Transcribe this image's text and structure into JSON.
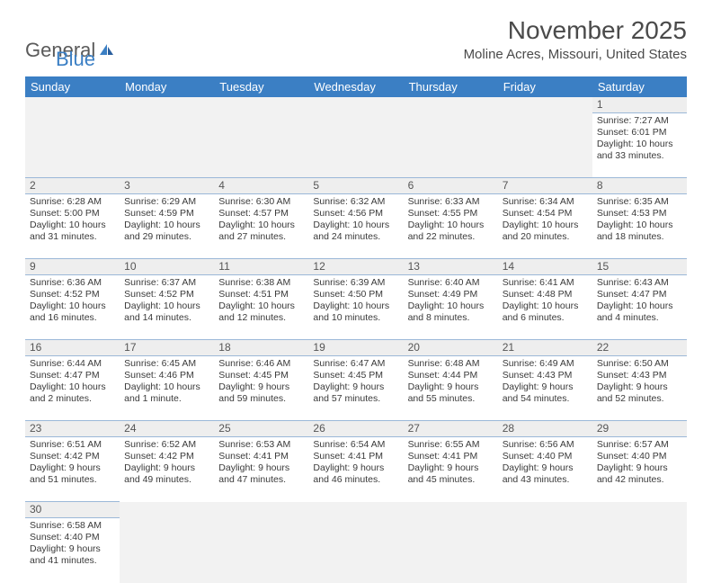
{
  "logo": {
    "text1": "General",
    "text2": "Blue"
  },
  "title": "November 2025",
  "location": "Moline Acres, Missouri, United States",
  "colors": {
    "header_bg": "#3b7fc4",
    "header_text": "#ffffff",
    "daynum_bg": "#eeeeee",
    "cell_border": "#9bb8d8",
    "blank_bg": "#f2f2f2",
    "body_text": "#3a3a3a"
  },
  "day_headers": [
    "Sunday",
    "Monday",
    "Tuesday",
    "Wednesday",
    "Thursday",
    "Friday",
    "Saturday"
  ],
  "weeks": [
    [
      null,
      null,
      null,
      null,
      null,
      null,
      {
        "n": "1",
        "sr": "7:27 AM",
        "ss": "6:01 PM",
        "dl": "10 hours and 33 minutes."
      }
    ],
    [
      {
        "n": "2",
        "sr": "6:28 AM",
        "ss": "5:00 PM",
        "dl": "10 hours and 31 minutes."
      },
      {
        "n": "3",
        "sr": "6:29 AM",
        "ss": "4:59 PM",
        "dl": "10 hours and 29 minutes."
      },
      {
        "n": "4",
        "sr": "6:30 AM",
        "ss": "4:57 PM",
        "dl": "10 hours and 27 minutes."
      },
      {
        "n": "5",
        "sr": "6:32 AM",
        "ss": "4:56 PM",
        "dl": "10 hours and 24 minutes."
      },
      {
        "n": "6",
        "sr": "6:33 AM",
        "ss": "4:55 PM",
        "dl": "10 hours and 22 minutes."
      },
      {
        "n": "7",
        "sr": "6:34 AM",
        "ss": "4:54 PM",
        "dl": "10 hours and 20 minutes."
      },
      {
        "n": "8",
        "sr": "6:35 AM",
        "ss": "4:53 PM",
        "dl": "10 hours and 18 minutes."
      }
    ],
    [
      {
        "n": "9",
        "sr": "6:36 AM",
        "ss": "4:52 PM",
        "dl": "10 hours and 16 minutes."
      },
      {
        "n": "10",
        "sr": "6:37 AM",
        "ss": "4:52 PM",
        "dl": "10 hours and 14 minutes."
      },
      {
        "n": "11",
        "sr": "6:38 AM",
        "ss": "4:51 PM",
        "dl": "10 hours and 12 minutes."
      },
      {
        "n": "12",
        "sr": "6:39 AM",
        "ss": "4:50 PM",
        "dl": "10 hours and 10 minutes."
      },
      {
        "n": "13",
        "sr": "6:40 AM",
        "ss": "4:49 PM",
        "dl": "10 hours and 8 minutes."
      },
      {
        "n": "14",
        "sr": "6:41 AM",
        "ss": "4:48 PM",
        "dl": "10 hours and 6 minutes."
      },
      {
        "n": "15",
        "sr": "6:43 AM",
        "ss": "4:47 PM",
        "dl": "10 hours and 4 minutes."
      }
    ],
    [
      {
        "n": "16",
        "sr": "6:44 AM",
        "ss": "4:47 PM",
        "dl": "10 hours and 2 minutes."
      },
      {
        "n": "17",
        "sr": "6:45 AM",
        "ss": "4:46 PM",
        "dl": "10 hours and 1 minute."
      },
      {
        "n": "18",
        "sr": "6:46 AM",
        "ss": "4:45 PM",
        "dl": "9 hours and 59 minutes."
      },
      {
        "n": "19",
        "sr": "6:47 AM",
        "ss": "4:45 PM",
        "dl": "9 hours and 57 minutes."
      },
      {
        "n": "20",
        "sr": "6:48 AM",
        "ss": "4:44 PM",
        "dl": "9 hours and 55 minutes."
      },
      {
        "n": "21",
        "sr": "6:49 AM",
        "ss": "4:43 PM",
        "dl": "9 hours and 54 minutes."
      },
      {
        "n": "22",
        "sr": "6:50 AM",
        "ss": "4:43 PM",
        "dl": "9 hours and 52 minutes."
      }
    ],
    [
      {
        "n": "23",
        "sr": "6:51 AM",
        "ss": "4:42 PM",
        "dl": "9 hours and 51 minutes."
      },
      {
        "n": "24",
        "sr": "6:52 AM",
        "ss": "4:42 PM",
        "dl": "9 hours and 49 minutes."
      },
      {
        "n": "25",
        "sr": "6:53 AM",
        "ss": "4:41 PM",
        "dl": "9 hours and 47 minutes."
      },
      {
        "n": "26",
        "sr": "6:54 AM",
        "ss": "4:41 PM",
        "dl": "9 hours and 46 minutes."
      },
      {
        "n": "27",
        "sr": "6:55 AM",
        "ss": "4:41 PM",
        "dl": "9 hours and 45 minutes."
      },
      {
        "n": "28",
        "sr": "6:56 AM",
        "ss": "4:40 PM",
        "dl": "9 hours and 43 minutes."
      },
      {
        "n": "29",
        "sr": "6:57 AM",
        "ss": "4:40 PM",
        "dl": "9 hours and 42 minutes."
      }
    ],
    [
      {
        "n": "30",
        "sr": "6:58 AM",
        "ss": "4:40 PM",
        "dl": "9 hours and 41 minutes."
      },
      null,
      null,
      null,
      null,
      null,
      null
    ]
  ],
  "labels": {
    "sunrise": "Sunrise:",
    "sunset": "Sunset:",
    "daylight": "Daylight:"
  }
}
